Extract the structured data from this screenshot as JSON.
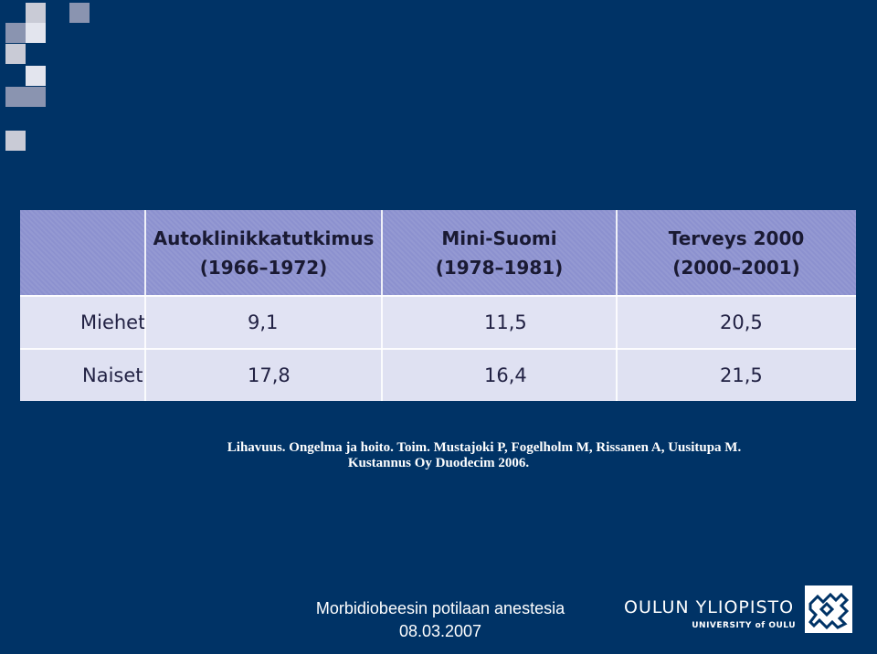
{
  "colors": {
    "background": "#003366",
    "deco_square_light": "#c9cbd6",
    "deco_square_mid": "#8a94b0",
    "table_header": "#8c91cf",
    "table_body": "#e1e3f3"
  },
  "table": {
    "headers": [
      {
        "line1": "Autoklinikkatutkimus",
        "line2": "(1966–1972)"
      },
      {
        "line1": "Mini-Suomi",
        "line2": "(1978–1981)"
      },
      {
        "line1": "Terveys 2000",
        "line2": "(2000–2001)"
      }
    ],
    "rows": [
      {
        "label": "Miehet",
        "values": [
          "9,1",
          "11,5",
          "20,5"
        ]
      },
      {
        "label": "Naiset",
        "values": [
          "17,8",
          "16,4",
          "21,5"
        ]
      }
    ]
  },
  "caption": {
    "line1": "Lihavuus. Ongelma ja hoito. Toim. Mustajoki P, Fogelholm M, Rissanen A, Uusitupa M.",
    "line2": "Kustannus Oy Duodecim 2006."
  },
  "footer": {
    "title": "Morbidiobeesin potilaan anestesia",
    "date": "08.03.2007"
  },
  "logo": {
    "name": "OULUN YLIOPISTO",
    "subname": "UNIVERSITY of OULU",
    "emblem_icon": "university-emblem-icon"
  }
}
